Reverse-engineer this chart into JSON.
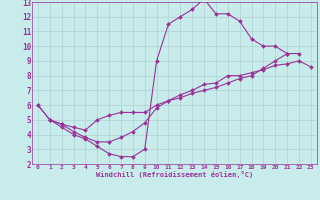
{
  "xlabel": "Windchill (Refroidissement éolien,°C)",
  "background_color": "#c8ecec",
  "grid_color": "#b0d0d0",
  "line_color": "#993399",
  "xlim": [
    -0.5,
    23.5
  ],
  "ylim": [
    2,
    13
  ],
  "xticks": [
    0,
    1,
    2,
    3,
    4,
    5,
    6,
    7,
    8,
    9,
    10,
    11,
    12,
    13,
    14,
    15,
    16,
    17,
    18,
    19,
    20,
    21,
    22,
    23
  ],
  "yticks": [
    2,
    3,
    4,
    5,
    6,
    7,
    8,
    9,
    10,
    11,
    12,
    13
  ],
  "curve1_x": [
    0,
    1,
    2,
    3,
    4,
    5,
    6,
    7,
    8,
    9,
    10,
    11,
    12,
    13,
    14,
    15,
    16,
    17,
    18,
    19,
    20,
    21,
    22
  ],
  "curve1_y": [
    6.0,
    5.0,
    4.5,
    4.0,
    3.7,
    3.2,
    2.7,
    2.5,
    2.5,
    3.0,
    9.0,
    11.5,
    12.0,
    12.5,
    13.2,
    12.2,
    12.2,
    11.7,
    10.5,
    10.0,
    10.0,
    9.5,
    9.5
  ],
  "curve2_x": [
    0,
    1,
    2,
    3,
    4,
    5,
    6,
    7,
    8,
    9,
    10,
    11,
    12,
    13,
    14,
    15,
    16,
    17,
    18,
    19,
    20,
    21,
    22,
    23
  ],
  "curve2_y": [
    6.0,
    5.0,
    4.7,
    4.2,
    3.8,
    3.5,
    3.5,
    3.8,
    4.2,
    4.8,
    5.8,
    6.3,
    6.7,
    7.0,
    7.4,
    7.5,
    8.0,
    8.0,
    8.2,
    8.4,
    8.7,
    8.8,
    9.0,
    8.6
  ],
  "curve3_x": [
    1,
    2,
    3,
    4,
    5,
    6,
    7,
    8,
    9,
    10,
    11,
    12,
    13,
    14,
    15,
    16,
    17,
    18,
    19,
    20,
    21
  ],
  "curve3_y": [
    5.0,
    4.7,
    4.5,
    4.3,
    5.0,
    5.3,
    5.5,
    5.5,
    5.5,
    6.0,
    6.3,
    6.5,
    6.8,
    7.0,
    7.2,
    7.5,
    7.8,
    8.0,
    8.5,
    9.0,
    9.5
  ]
}
